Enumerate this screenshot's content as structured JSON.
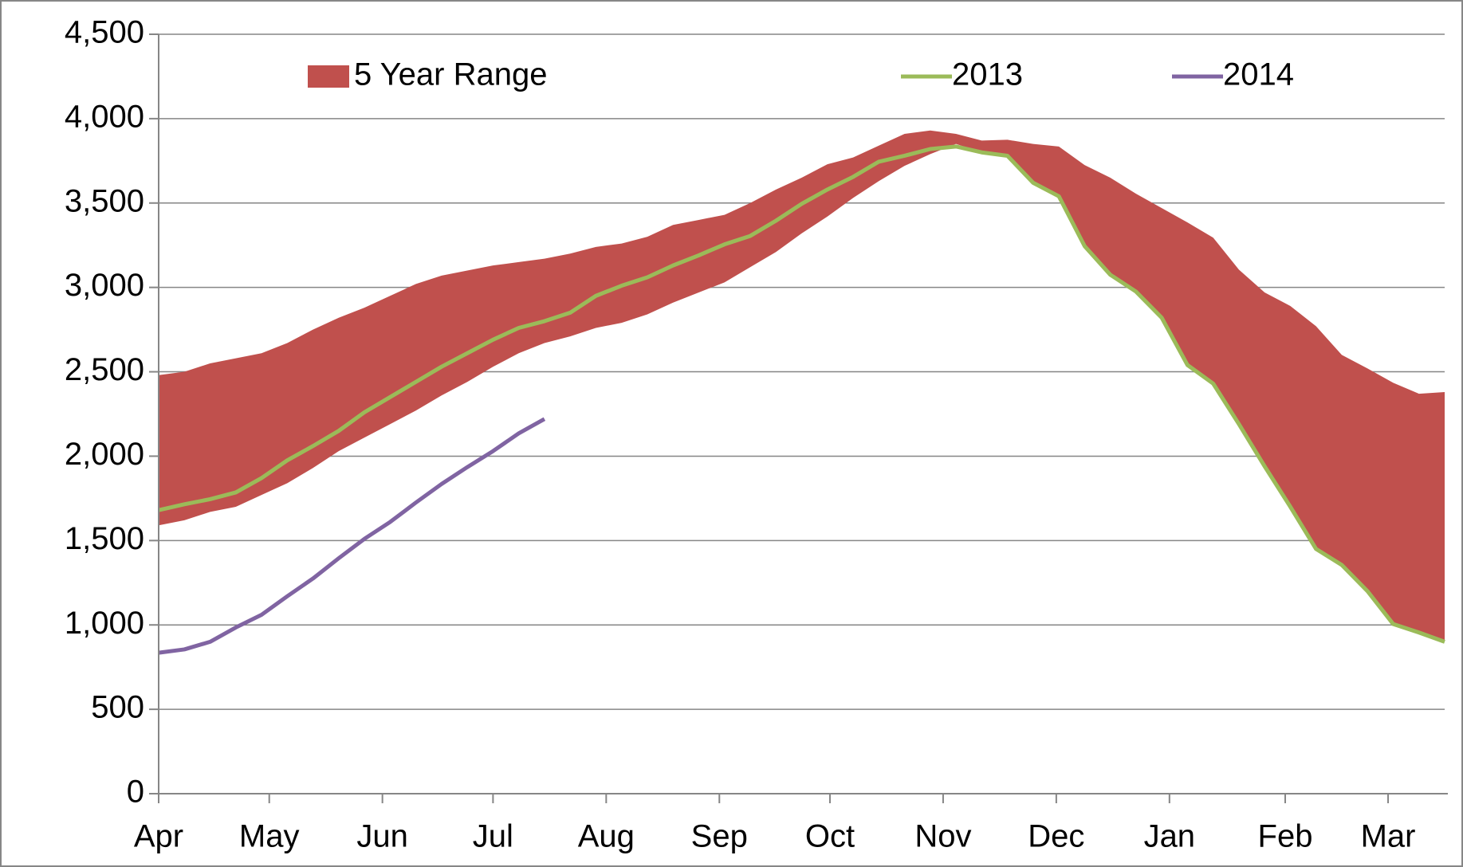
{
  "chart_data": {
    "type": "line",
    "x": [
      0,
      1,
      2,
      3,
      4,
      5,
      6,
      7,
      8,
      9,
      10,
      11,
      12,
      13,
      14,
      15,
      16,
      17,
      18,
      19,
      20,
      21,
      22,
      23,
      24,
      25,
      26,
      27,
      28,
      29,
      30,
      31,
      32,
      33,
      34,
      35,
      36,
      37,
      38,
      39,
      40,
      41,
      42,
      43,
      44,
      45,
      46,
      47,
      48,
      49,
      50
    ],
    "xlim": [
      0,
      50
    ],
    "xticks": [
      {
        "value": 0,
        "label": "Apr"
      },
      {
        "value": 4.3,
        "label": "May"
      },
      {
        "value": 8.7,
        "label": "Jun"
      },
      {
        "value": 13.0,
        "label": "Jul"
      },
      {
        "value": 17.4,
        "label": "Aug"
      },
      {
        "value": 21.8,
        "label": "Sep"
      },
      {
        "value": 26.1,
        "label": "Oct"
      },
      {
        "value": 30.5,
        "label": "Nov"
      },
      {
        "value": 34.9,
        "label": "Dec"
      },
      {
        "value": 39.3,
        "label": "Jan"
      },
      {
        "value": 43.8,
        "label": "Feb"
      },
      {
        "value": 47.8,
        "label": "Mar"
      }
    ],
    "ylim": [
      0,
      4500
    ],
    "yticks": [
      0,
      500,
      {
        "value": 1000,
        "label": "1,000"
      },
      {
        "value": 1500,
        "label": "1,500"
      },
      {
        "value": 2000,
        "label": "2,000"
      },
      {
        "value": 2500,
        "label": "2,500"
      },
      {
        "value": 3000,
        "label": "3,000"
      },
      {
        "value": 3500,
        "label": "3,500"
      },
      {
        "value": 4000,
        "label": "4,000"
      },
      {
        "value": 4500,
        "label": "4,500"
      }
    ],
    "grid": true,
    "legend": "top",
    "series": [
      {
        "name": "5 Year Range",
        "color": "#c0504d",
        "kind": "range",
        "lower": [
          1590,
          1620,
          1670,
          1700,
          1770,
          1840,
          1930,
          2030,
          2110,
          2190,
          2270,
          2360,
          2440,
          2530,
          2610,
          2670,
          2710,
          2760,
          2790,
          2840,
          2910,
          2970,
          3030,
          3120,
          3210,
          3320,
          3420,
          3530,
          3630,
          3720,
          3790,
          3850,
          3800,
          3780,
          3620,
          3540,
          3245,
          3075,
          2975,
          2820,
          2540,
          2430,
          2190,
          1940,
          1700,
          1450,
          1355,
          1200,
          1005,
          955,
          900
        ],
        "upper": [
          2480,
          2500,
          2550,
          2580,
          2610,
          2670,
          2750,
          2820,
          2880,
          2950,
          3020,
          3070,
          3100,
          3130,
          3150,
          3170,
          3200,
          3240,
          3260,
          3300,
          3370,
          3400,
          3430,
          3500,
          3580,
          3650,
          3730,
          3770,
          3840,
          3910,
          3930,
          3910,
          3870,
          3875,
          3850,
          3835,
          3725,
          3650,
          3555,
          3470,
          3385,
          3295,
          3105,
          2970,
          2890,
          2770,
          2600,
          2520,
          2435,
          2370,
          2380
        ]
      },
      {
        "name": "2013",
        "color": "#9bbb59",
        "values": [
          1680,
          1715,
          1745,
          1785,
          1870,
          1975,
          2060,
          2150,
          2260,
          2350,
          2440,
          2530,
          2610,
          2690,
          2760,
          2800,
          2850,
          2950,
          3010,
          3060,
          3130,
          3190,
          3255,
          3305,
          3395,
          3495,
          3580,
          3655,
          3745,
          3780,
          3820,
          3835,
          3800,
          3780,
          3620,
          3540,
          3245,
          3075,
          2975,
          2820,
          2540,
          2430,
          2190,
          1940,
          1700,
          1450,
          1355,
          1200,
          1005,
          955,
          900
        ]
      },
      {
        "name": "2014",
        "color": "#8064a2",
        "values": [
          835,
          855,
          900,
          985,
          1060,
          1170,
          1275,
          1395,
          1510,
          1610,
          1725,
          1835,
          1935,
          2030,
          2135,
          2220,
          null,
          null,
          null,
          null,
          null,
          null,
          null,
          null,
          null,
          null,
          null,
          null,
          null,
          null,
          null,
          null,
          null,
          null,
          null,
          null,
          null,
          null,
          null,
          null,
          null,
          null,
          null,
          null,
          null,
          null,
          null,
          null,
          null,
          null,
          null
        ]
      }
    ]
  }
}
